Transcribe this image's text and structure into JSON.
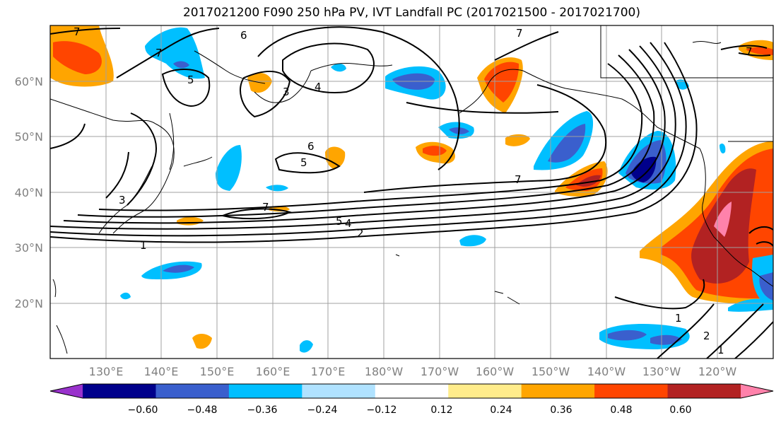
{
  "title": "2017021200 F090 250 hPa PV, IVT Landfall PC (2017021500 - 2017021700)",
  "lat_labels": [
    "60°N",
    "50°N",
    "40°N",
    "30°N",
    "20°N"
  ],
  "lon_labels": [
    "130°E",
    "140°E",
    "150°E",
    "160°E",
    "170°E",
    "180°W",
    "170°W",
    "160°W",
    "150°W",
    "140°W",
    "130°W",
    "120°W"
  ],
  "contour_labels": [
    "7",
    "7",
    "7",
    "7",
    "7",
    "7",
    "6",
    "6",
    "5",
    "5",
    "5",
    "4",
    "4",
    "3",
    "3",
    "2",
    "2",
    "1",
    "1",
    "1"
  ],
  "colorbar": {
    "ticks": [
      "−0.60",
      "−0.48",
      "−0.36",
      "−0.24",
      "−0.12",
      "0.12",
      "0.24",
      "0.36",
      "0.48",
      "0.60"
    ],
    "colors": [
      "#9932cc",
      "#00008b",
      "#3a5fcd",
      "#00bfff",
      "#b0e2ff",
      "#ffffff",
      "#ffec8b",
      "#ffa500",
      "#ff4500",
      "#b22222",
      "#ff82ab"
    ]
  },
  "colors": {
    "neg_light": "#00bfff",
    "neg_mid": "#3a5fcd",
    "neg_dark": "#00008b",
    "pos_light": "#ffec8b",
    "pos_mid": "#ffa500",
    "pos_strong": "#ff4500",
    "pos_dark": "#b22222",
    "pos_max": "#ff82ab",
    "grid": "#a0a0a0",
    "axis_text": "#808080"
  }
}
